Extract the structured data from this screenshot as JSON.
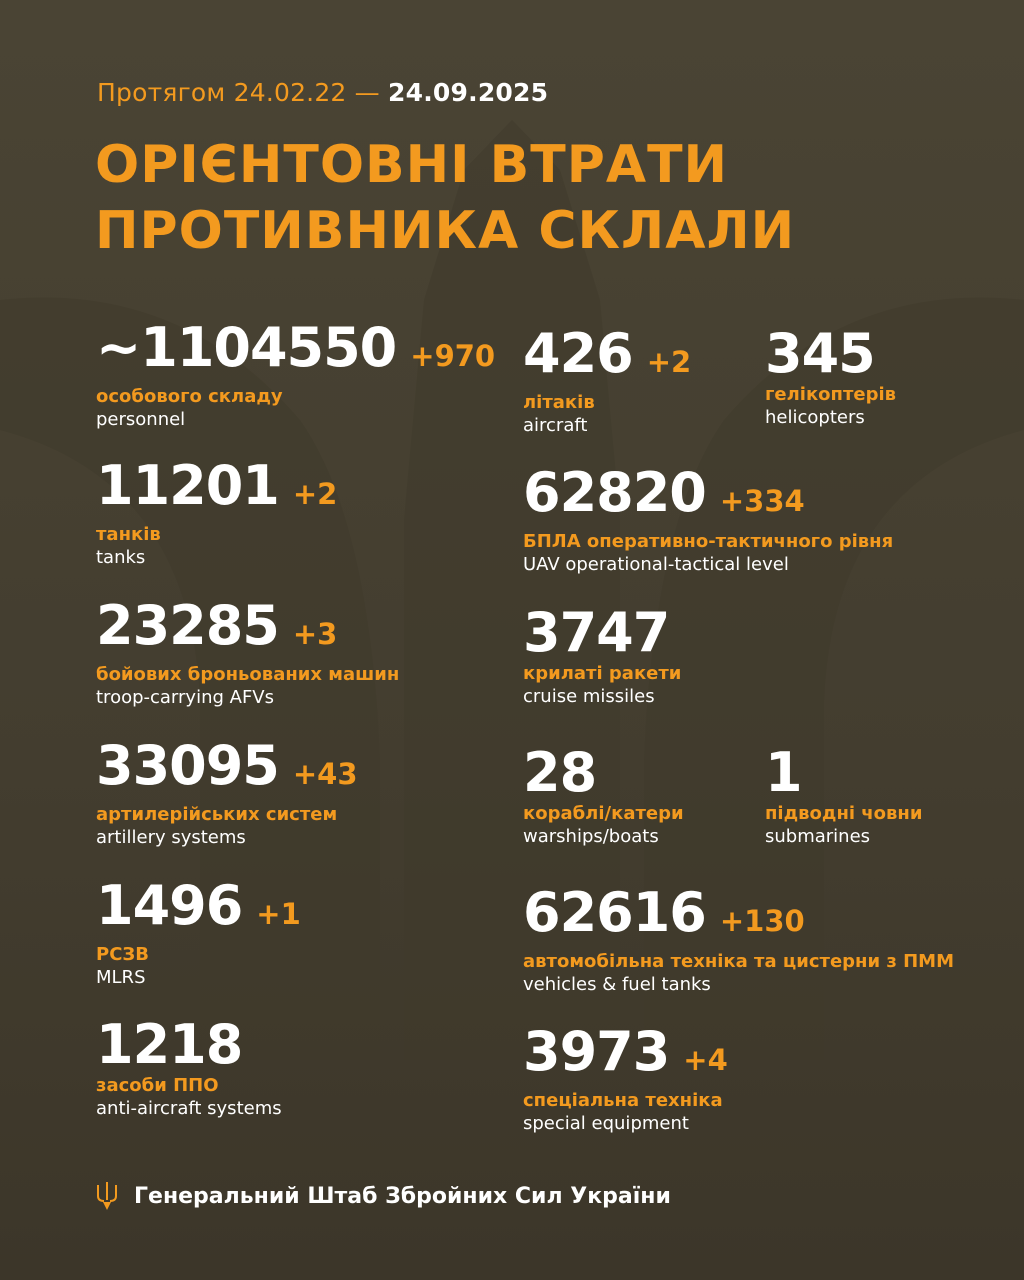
{
  "header": {
    "period_prefix": "Протягом 24.02.22 —",
    "period_end": "24.09.2025",
    "title_line1": "ОРІЄНТОВНІ ВТРАТИ",
    "title_line2": "ПРОТИВНИКА СКЛАЛИ"
  },
  "colors": {
    "accent": "#f39a1f",
    "background": "#48422f",
    "text": "#ffffff"
  },
  "items": [
    {
      "value": "~1104550",
      "delta": "+970",
      "ua": "особового складу",
      "en": "personnel"
    },
    {
      "value": "11201",
      "delta": "+2",
      "ua": "танків",
      "en": "tanks"
    },
    {
      "value": "23285",
      "delta": "+3",
      "ua": "бойових броньованих машин",
      "en": "troop-carrying AFVs"
    },
    {
      "value": "33095",
      "delta": "+43",
      "ua": "артилерійських систем",
      "en": "artillery systems"
    },
    {
      "value": "1496",
      "delta": "+1",
      "ua": "РСЗВ",
      "en": "MLRS"
    },
    {
      "value": "1218",
      "delta": "",
      "ua": "засоби ППО",
      "en": "anti-aircraft systems"
    },
    {
      "value": "426",
      "delta": "+2",
      "ua": "літаків",
      "en": "aircraft"
    },
    {
      "value": "345",
      "delta": "",
      "ua": "гелікоптерів",
      "en": "helicopters"
    },
    {
      "value": "62820",
      "delta": "+334",
      "ua": "БПЛА оперативно-тактичного рівня",
      "en": "UAV operational-tactical level"
    },
    {
      "value": "3747",
      "delta": "",
      "ua": "крилаті ракети",
      "en": "cruise missiles"
    },
    {
      "value": "28",
      "delta": "",
      "ua": "кораблі/катери",
      "en": "warships/boats"
    },
    {
      "value": "1",
      "delta": "",
      "ua": "підводні човни",
      "en": "submarines"
    },
    {
      "value": "62616",
      "delta": "+130",
      "ua": "автомобільна техніка та цистерни з ПММ",
      "en": "vehicles & fuel tanks"
    },
    {
      "value": "3973",
      "delta": "+4",
      "ua": "спеціальна техніка",
      "en": "special equipment"
    }
  ],
  "footer": {
    "icon": "trident-icon",
    "text": "Генеральний Штаб Збройних Сил України"
  }
}
